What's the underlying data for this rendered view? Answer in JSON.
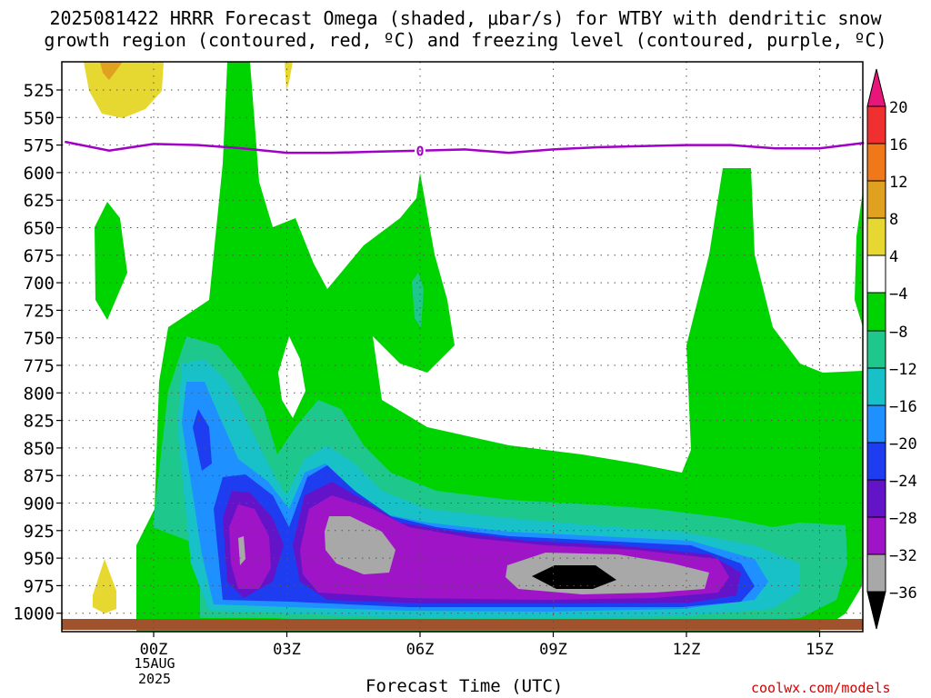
{
  "title_line1": "2025081422 HRRR Forecast Omega (shaded, μbar/s) for WTBY with dendritic snow",
  "title_line2": "growth region (contoured, red, ºC) and freezing level (contoured, purple, ºC)",
  "credit": "coolwx.com/models",
  "chart_data": {
    "type": "filled-contour time-height cross section",
    "title": "2025081422 HRRR Forecast Omega (shaded, μbar/s) for WTBY with dendritic snow growth region (contoured, red, ºC) and freezing level (contoured, purple, ºC)",
    "xlabel": "Forecast Time (UTC)",
    "ylabel": "",
    "x_ticks": [
      "00Z",
      "03Z",
      "06Z",
      "09Z",
      "12Z",
      "15Z"
    ],
    "x_date_label": [
      "15AUG",
      "2025"
    ],
    "y_ticks": [
      525,
      550,
      575,
      600,
      625,
      650,
      675,
      700,
      725,
      750,
      775,
      800,
      825,
      850,
      875,
      900,
      925,
      950,
      975,
      1000
    ],
    "y_axis": "pressure (mb), inverted",
    "grid": true,
    "colorbar": {
      "levels": [
        20,
        16,
        12,
        8,
        4,
        -4,
        -8,
        -12,
        -16,
        -20,
        -24,
        -28,
        -32,
        -36
      ],
      "labels": [
        "20",
        "16",
        "12",
        "8",
        "4",
        "−4",
        "−8",
        "−12",
        "−16",
        "−20",
        "−24",
        "−28",
        "−32",
        "−36"
      ],
      "colors": [
        "#e8157a",
        "#f03030",
        "#f07818",
        "#e0a020",
        "#e6d830",
        "#ffffff",
        "#00d400",
        "#1ec88c",
        "#18c0c8",
        "#1e90ff",
        "#1e3cf0",
        "#6414c8",
        "#a014c8",
        "#a8a8a8",
        "#000000"
      ]
    },
    "freezing_level": {
      "label": "0",
      "color": "#a000c8",
      "points": [
        [
          -2.0,
          572
        ],
        [
          -1.0,
          580
        ],
        [
          0.0,
          574
        ],
        [
          1.0,
          575
        ],
        [
          2.0,
          578
        ],
        [
          3.0,
          582
        ],
        [
          4.0,
          582
        ],
        [
          5.0,
          581
        ],
        [
          6.0,
          580
        ],
        [
          7.0,
          579
        ],
        [
          8.0,
          582
        ],
        [
          9.0,
          579
        ],
        [
          10.0,
          577
        ],
        [
          11.0,
          576
        ],
        [
          12.0,
          575
        ],
        [
          13.0,
          575
        ],
        [
          14.0,
          578
        ],
        [
          15.0,
          578
        ],
        [
          16.0,
          573
        ]
      ]
    },
    "omega_regions": [
      {
        "level": -8,
        "description": "broad lifting region, upper plume to ~500mb near 01-02Z, plumes near 03Z and 06Z, and 12-13Z"
      },
      {
        "level": -32,
        "description": "strongest lift 04-05Z and 08-12Z near 900-950mb"
      },
      {
        "level": -36,
        "description": "peak lift near 09-10Z around 940-950mb"
      },
      {
        "level": 4,
        "description": "weak sinking near 500-550mb at 23Z and near 950-975mb at 23Z"
      }
    ]
  }
}
